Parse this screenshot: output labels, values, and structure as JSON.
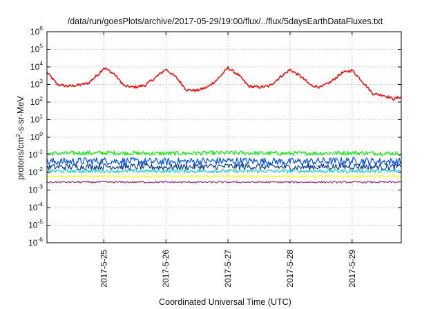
{
  "chart_data": {
    "type": "line",
    "title": "/data/run/goesPlots/archive/2017-05-29/19:00/flux/../flux/5daysEarthDataFluxes.txt",
    "xlabel": "Coordinated Universal Time (UTC)",
    "ylabel": {
      "pre": "protons/cm",
      "sup": "2",
      "post": "-s-sr-MeV"
    },
    "y_scale": "log",
    "ylim": [
      1e-06,
      1000000.0
    ],
    "xlim": [
      "2017-05-24 02:00",
      "2017-05-29 19:00"
    ],
    "grid": true,
    "legend": "none",
    "y_ticks": [
      {
        "value": 1e-06,
        "base": "10",
        "exp": "-6"
      },
      {
        "value": 1e-05,
        "base": "10",
        "exp": "-5"
      },
      {
        "value": 0.0001,
        "base": "10",
        "exp": "-4"
      },
      {
        "value": 0.001,
        "base": "10",
        "exp": "-3"
      },
      {
        "value": 0.01,
        "base": "10",
        "exp": "-2"
      },
      {
        "value": 0.1,
        "base": "10",
        "exp": "-1"
      },
      {
        "value": 1.0,
        "base": "10",
        "exp": "0"
      },
      {
        "value": 10.0,
        "base": "10",
        "exp": "1"
      },
      {
        "value": 100.0,
        "base": "10",
        "exp": "2"
      },
      {
        "value": 1000.0,
        "base": "10",
        "exp": "3"
      },
      {
        "value": 10000.0,
        "base": "10",
        "exp": "4"
      },
      {
        "value": 100000.0,
        "base": "10",
        "exp": "5"
      },
      {
        "value": 1000000.0,
        "base": "10",
        "exp": "6"
      }
    ],
    "x_ticks": [
      {
        "value": "2017-05-25 00:00",
        "label": "2017-5-25"
      },
      {
        "value": "2017-05-26 00:00",
        "label": "2017-5-26"
      },
      {
        "value": "2017-05-27 00:00",
        "label": "2017-5-27"
      },
      {
        "value": "2017-05-28 00:00",
        "label": "2017-5-28"
      },
      {
        "value": "2017-05-29 00:00",
        "label": "2017-5-29"
      }
    ],
    "series": [
      {
        "color": "#ff0000",
        "x": [
          "2017-05-24 02:00",
          "2017-05-24 06:00",
          "2017-05-24 10:00",
          "2017-05-24 14:00",
          "2017-05-24 18:00",
          "2017-05-24 22:00",
          "2017-05-25 00:00",
          "2017-05-25 04:00",
          "2017-05-25 08:00",
          "2017-05-25 12:00",
          "2017-05-25 16:00",
          "2017-05-25 20:00",
          "2017-05-26 00:00",
          "2017-05-26 04:00",
          "2017-05-26 08:00",
          "2017-05-26 12:00",
          "2017-05-26 16:00",
          "2017-05-26 20:00",
          "2017-05-27 00:00",
          "2017-05-27 04:00",
          "2017-05-27 08:00",
          "2017-05-27 12:00",
          "2017-05-27 16:00",
          "2017-05-27 20:00",
          "2017-05-28 00:00",
          "2017-05-28 04:00",
          "2017-05-28 08:00",
          "2017-05-28 12:00",
          "2017-05-28 16:00",
          "2017-05-28 20:00",
          "2017-05-29 00:00",
          "2017-05-29 04:00",
          "2017-05-29 08:00",
          "2017-05-29 12:00",
          "2017-05-29 16:00",
          "2017-05-29 19:00"
        ],
        "y": [
          5000,
          1000,
          800,
          900,
          1200,
          4000,
          9000,
          4000,
          800,
          700,
          900,
          2500,
          7500,
          2500,
          500,
          450,
          700,
          2000,
          9000,
          3500,
          800,
          700,
          800,
          2500,
          7000,
          3000,
          900,
          700,
          1500,
          4500,
          6500,
          1500,
          300,
          250,
          150,
          200
        ]
      },
      {
        "color": "#00ee00",
        "x": [
          "2017-05-24 02:00",
          "2017-05-25 00:00",
          "2017-05-26 00:00",
          "2017-05-27 00:00",
          "2017-05-28 00:00",
          "2017-05-29 00:00",
          "2017-05-29 19:00"
        ],
        "y": [
          0.12,
          0.13,
          0.12,
          0.13,
          0.12,
          0.13,
          0.12
        ]
      },
      {
        "color": "#0050ff",
        "x": [
          "2017-05-24 02:00",
          "2017-05-25 00:00",
          "2017-05-26 00:00",
          "2017-05-27 00:00",
          "2017-05-28 00:00",
          "2017-05-29 00:00",
          "2017-05-29 19:00"
        ],
        "y": [
          0.04,
          0.045,
          0.04,
          0.045,
          0.04,
          0.045,
          0.04
        ]
      },
      {
        "color": "#003090",
        "x": [
          "2017-05-24 02:00",
          "2017-05-25 00:00",
          "2017-05-26 00:00",
          "2017-05-27 00:00",
          "2017-05-28 00:00",
          "2017-05-29 00:00",
          "2017-05-29 19:00"
        ],
        "y": [
          0.02,
          0.022,
          0.02,
          0.022,
          0.02,
          0.022,
          0.02
        ]
      },
      {
        "color": "#00cccc",
        "x": [
          "2017-05-24 02:00",
          "2017-05-25 00:00",
          "2017-05-26 00:00",
          "2017-05-27 00:00",
          "2017-05-28 00:00",
          "2017-05-29 00:00",
          "2017-05-29 19:00"
        ],
        "y": [
          0.012,
          0.012,
          0.012,
          0.012,
          0.012,
          0.012,
          0.012
        ]
      },
      {
        "color": "#ffff00",
        "x": [
          "2017-05-24 02:00",
          "2017-05-25 00:00",
          "2017-05-26 00:00",
          "2017-05-27 00:00",
          "2017-05-28 00:00",
          "2017-05-29 00:00",
          "2017-05-29 19:00"
        ],
        "y": [
          0.006,
          0.006,
          0.006,
          0.006,
          0.006,
          0.006,
          0.006
        ]
      },
      {
        "color": "#8b2070",
        "x": [
          "2017-05-24 02:00",
          "2017-05-25 00:00",
          "2017-05-26 00:00",
          "2017-05-27 00:00",
          "2017-05-28 00:00",
          "2017-05-29 00:00",
          "2017-05-29 19:00"
        ],
        "y": [
          0.0028,
          0.0028,
          0.0028,
          0.0028,
          0.0028,
          0.0028,
          0.0028
        ]
      }
    ]
  }
}
